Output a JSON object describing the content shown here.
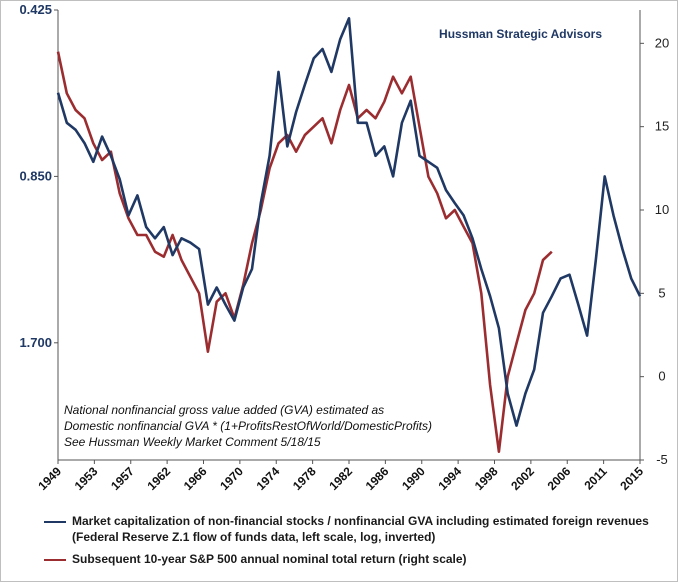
{
  "chart_data": {
    "type": "line",
    "source_label": "Hussman Strategic Advisors",
    "note_lines": [
      "National nonfinancial gross value added (GVA) estimated as",
      "Domestic nonfinancial GVA  * (1+ProfitsRestOfWorld/DomesticProfits)",
      "See Hussman Weekly Market Comment 5/18/15"
    ],
    "x_tick_labels": [
      "1949",
      "1953",
      "1957",
      "1962",
      "1966",
      "1970",
      "1974",
      "1978",
      "1982",
      "1986",
      "1990",
      "1994",
      "1998",
      "2002",
      "2006",
      "2011",
      "2015"
    ],
    "x_range": [
      1949,
      2015
    ],
    "left_axis": {
      "scale": "log",
      "inverted": true,
      "ticks": [
        "0.425",
        "0.850",
        "1.700"
      ],
      "range": [
        0.425,
        2.77
      ]
    },
    "right_axis": {
      "ticks": [
        "20",
        "15",
        "10",
        "5",
        "0",
        "-5"
      ],
      "range": [
        -5,
        22
      ]
    },
    "series": [
      {
        "name": "Market capitalization of non-financial stocks / nonfinancial GVA including estimated foreign revenues",
        "name_line2": "(Federal Reserve Z.1 flow of funds data, left scale, log, inverted)",
        "color": "#1f3864",
        "axis": "left",
        "x": [
          1949,
          1950,
          1951,
          1952,
          1953,
          1954,
          1955,
          1956,
          1957,
          1958,
          1959,
          1960,
          1961,
          1962,
          1963,
          1964,
          1965,
          1966,
          1967,
          1968,
          1969,
          1970,
          1971,
          1972,
          1973,
          1974,
          1975,
          1976,
          1977,
          1978,
          1979,
          1980,
          1981,
          1982,
          1983,
          1984,
          1985,
          1986,
          1987,
          1988,
          1989,
          1990,
          1991,
          1992,
          1993,
          1994,
          1995,
          1996,
          1997,
          1998,
          1999,
          2000,
          2001,
          2002,
          2003,
          2004,
          2005,
          2006,
          2007,
          2008,
          2009,
          2010,
          2011,
          2012,
          2013,
          2014,
          2015
        ],
        "values": [
          0.6,
          0.68,
          0.7,
          0.74,
          0.8,
          0.72,
          0.78,
          0.86,
          1.0,
          0.92,
          1.05,
          1.1,
          1.05,
          1.18,
          1.1,
          1.12,
          1.15,
          1.45,
          1.35,
          1.45,
          1.55,
          1.35,
          1.25,
          0.95,
          0.78,
          0.55,
          0.75,
          0.65,
          0.58,
          0.52,
          0.5,
          0.55,
          0.48,
          0.44,
          0.68,
          0.68,
          0.78,
          0.75,
          0.85,
          0.68,
          0.62,
          0.78,
          0.8,
          0.82,
          0.9,
          0.95,
          1.0,
          1.1,
          1.25,
          1.4,
          1.6,
          2.1,
          2.4,
          2.1,
          1.9,
          1.5,
          1.4,
          1.3,
          1.28,
          1.45,
          1.65,
          1.2,
          0.85,
          1.0,
          1.15,
          1.3,
          1.4
        ]
      },
      {
        "name": "Subsequent 10-year S&P 500 annual nominal total return (right scale)",
        "color": "#9b2d30",
        "axis": "right",
        "x": [
          1949,
          1950,
          1951,
          1952,
          1953,
          1954,
          1955,
          1956,
          1957,
          1958,
          1959,
          1960,
          1961,
          1962,
          1963,
          1964,
          1965,
          1966,
          1967,
          1968,
          1969,
          1970,
          1971,
          1972,
          1973,
          1974,
          1975,
          1976,
          1977,
          1978,
          1979,
          1980,
          1981,
          1982,
          1983,
          1984,
          1985,
          1986,
          1987,
          1988,
          1989,
          1990,
          1991,
          1992,
          1993,
          1994,
          1995,
          1996,
          1997,
          1998,
          1999,
          2000,
          2001,
          2002,
          2003,
          2004,
          2005
        ],
        "values": [
          19.5,
          17,
          16,
          15.5,
          14,
          13,
          13.5,
          11,
          9.5,
          8.5,
          8.5,
          7.5,
          7.2,
          8.5,
          7,
          6,
          5,
          1.5,
          4.5,
          5,
          3.5,
          5.5,
          8,
          10,
          12.5,
          14,
          14.5,
          13.5,
          14.5,
          15,
          15.5,
          14,
          16,
          17.5,
          15.5,
          16,
          15.5,
          16.5,
          18,
          17,
          18,
          15,
          12,
          11,
          9.5,
          10,
          9,
          8,
          5,
          -0.5,
          -4.5,
          0,
          2,
          4,
          5,
          7,
          7.5
        ]
      }
    ]
  }
}
